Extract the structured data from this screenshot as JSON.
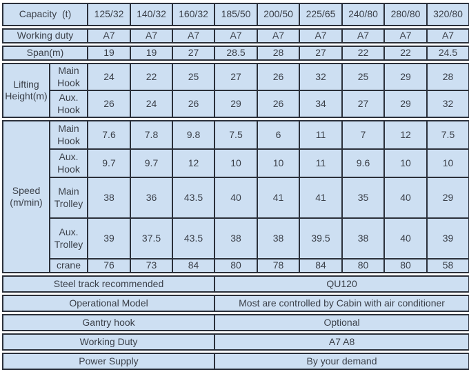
{
  "colors": {
    "cell_bg": "#cddff2",
    "border": "#2b303a",
    "text": "#3b4049",
    "page_bg": "#ffffff"
  },
  "capacity": {
    "label": "Capacity  (t)",
    "values": [
      "125/32",
      "140/32",
      "160/32",
      "185/50",
      "200/50",
      "225/65",
      "240/80",
      "280/80",
      "320/80"
    ]
  },
  "working_duty": {
    "label": "Working duty",
    "values": [
      "A7",
      "A7",
      "A7",
      "A7",
      "A7",
      "A7",
      "A7",
      "A7",
      "A7"
    ]
  },
  "span": {
    "label": "Span(m)",
    "values": [
      "19",
      "19",
      "27",
      "28.5",
      "28",
      "27",
      "22",
      "22",
      "24.5"
    ]
  },
  "lifting_height": {
    "label": "Lifting Height(m)",
    "rows": [
      {
        "label": "Main Hook",
        "values": [
          "24",
          "22",
          "25",
          "27",
          "26",
          "32",
          "25",
          "29",
          "28"
        ]
      },
      {
        "label": "Aux. Hook",
        "values": [
          "26",
          "24",
          "26",
          "29",
          "26",
          "34",
          "27",
          "29",
          "32"
        ]
      }
    ]
  },
  "speed": {
    "label": "Speed (m/min)",
    "rows": [
      {
        "label": "Main Hook",
        "values": [
          "7.6",
          "7.8",
          "9.8",
          "7.5",
          "6",
          "11",
          "7",
          "12",
          "7.5"
        ]
      },
      {
        "label": "Aux. Hook",
        "values": [
          "9.7",
          "9.7",
          "12",
          "10",
          "10",
          "11",
          "9.6",
          "10",
          "10"
        ]
      },
      {
        "label": "Main Trolley",
        "values": [
          "38",
          "36",
          "43.5",
          "40",
          "41",
          "41",
          "35",
          "40",
          "29"
        ]
      },
      {
        "label": "Aux. Trolley",
        "values": [
          "39",
          "37.5",
          "43.5",
          "38",
          "38",
          "39.5",
          "38",
          "40",
          "39"
        ]
      },
      {
        "label": "crane",
        "values": [
          "76",
          "73",
          "84",
          "80",
          "78",
          "84",
          "80",
          "80",
          "58"
        ]
      }
    ]
  },
  "footer": [
    {
      "label": "Steel track recommended",
      "value": "QU120"
    },
    {
      "label": "Operational Model",
      "value": "Most are controlled by Cabin with air conditioner"
    },
    {
      "label": "Gantry hook",
      "value": "Optional"
    },
    {
      "label": "Working Duty",
      "value": "A7 A8"
    },
    {
      "label": "Power Supply",
      "value": "By your demand"
    }
  ]
}
